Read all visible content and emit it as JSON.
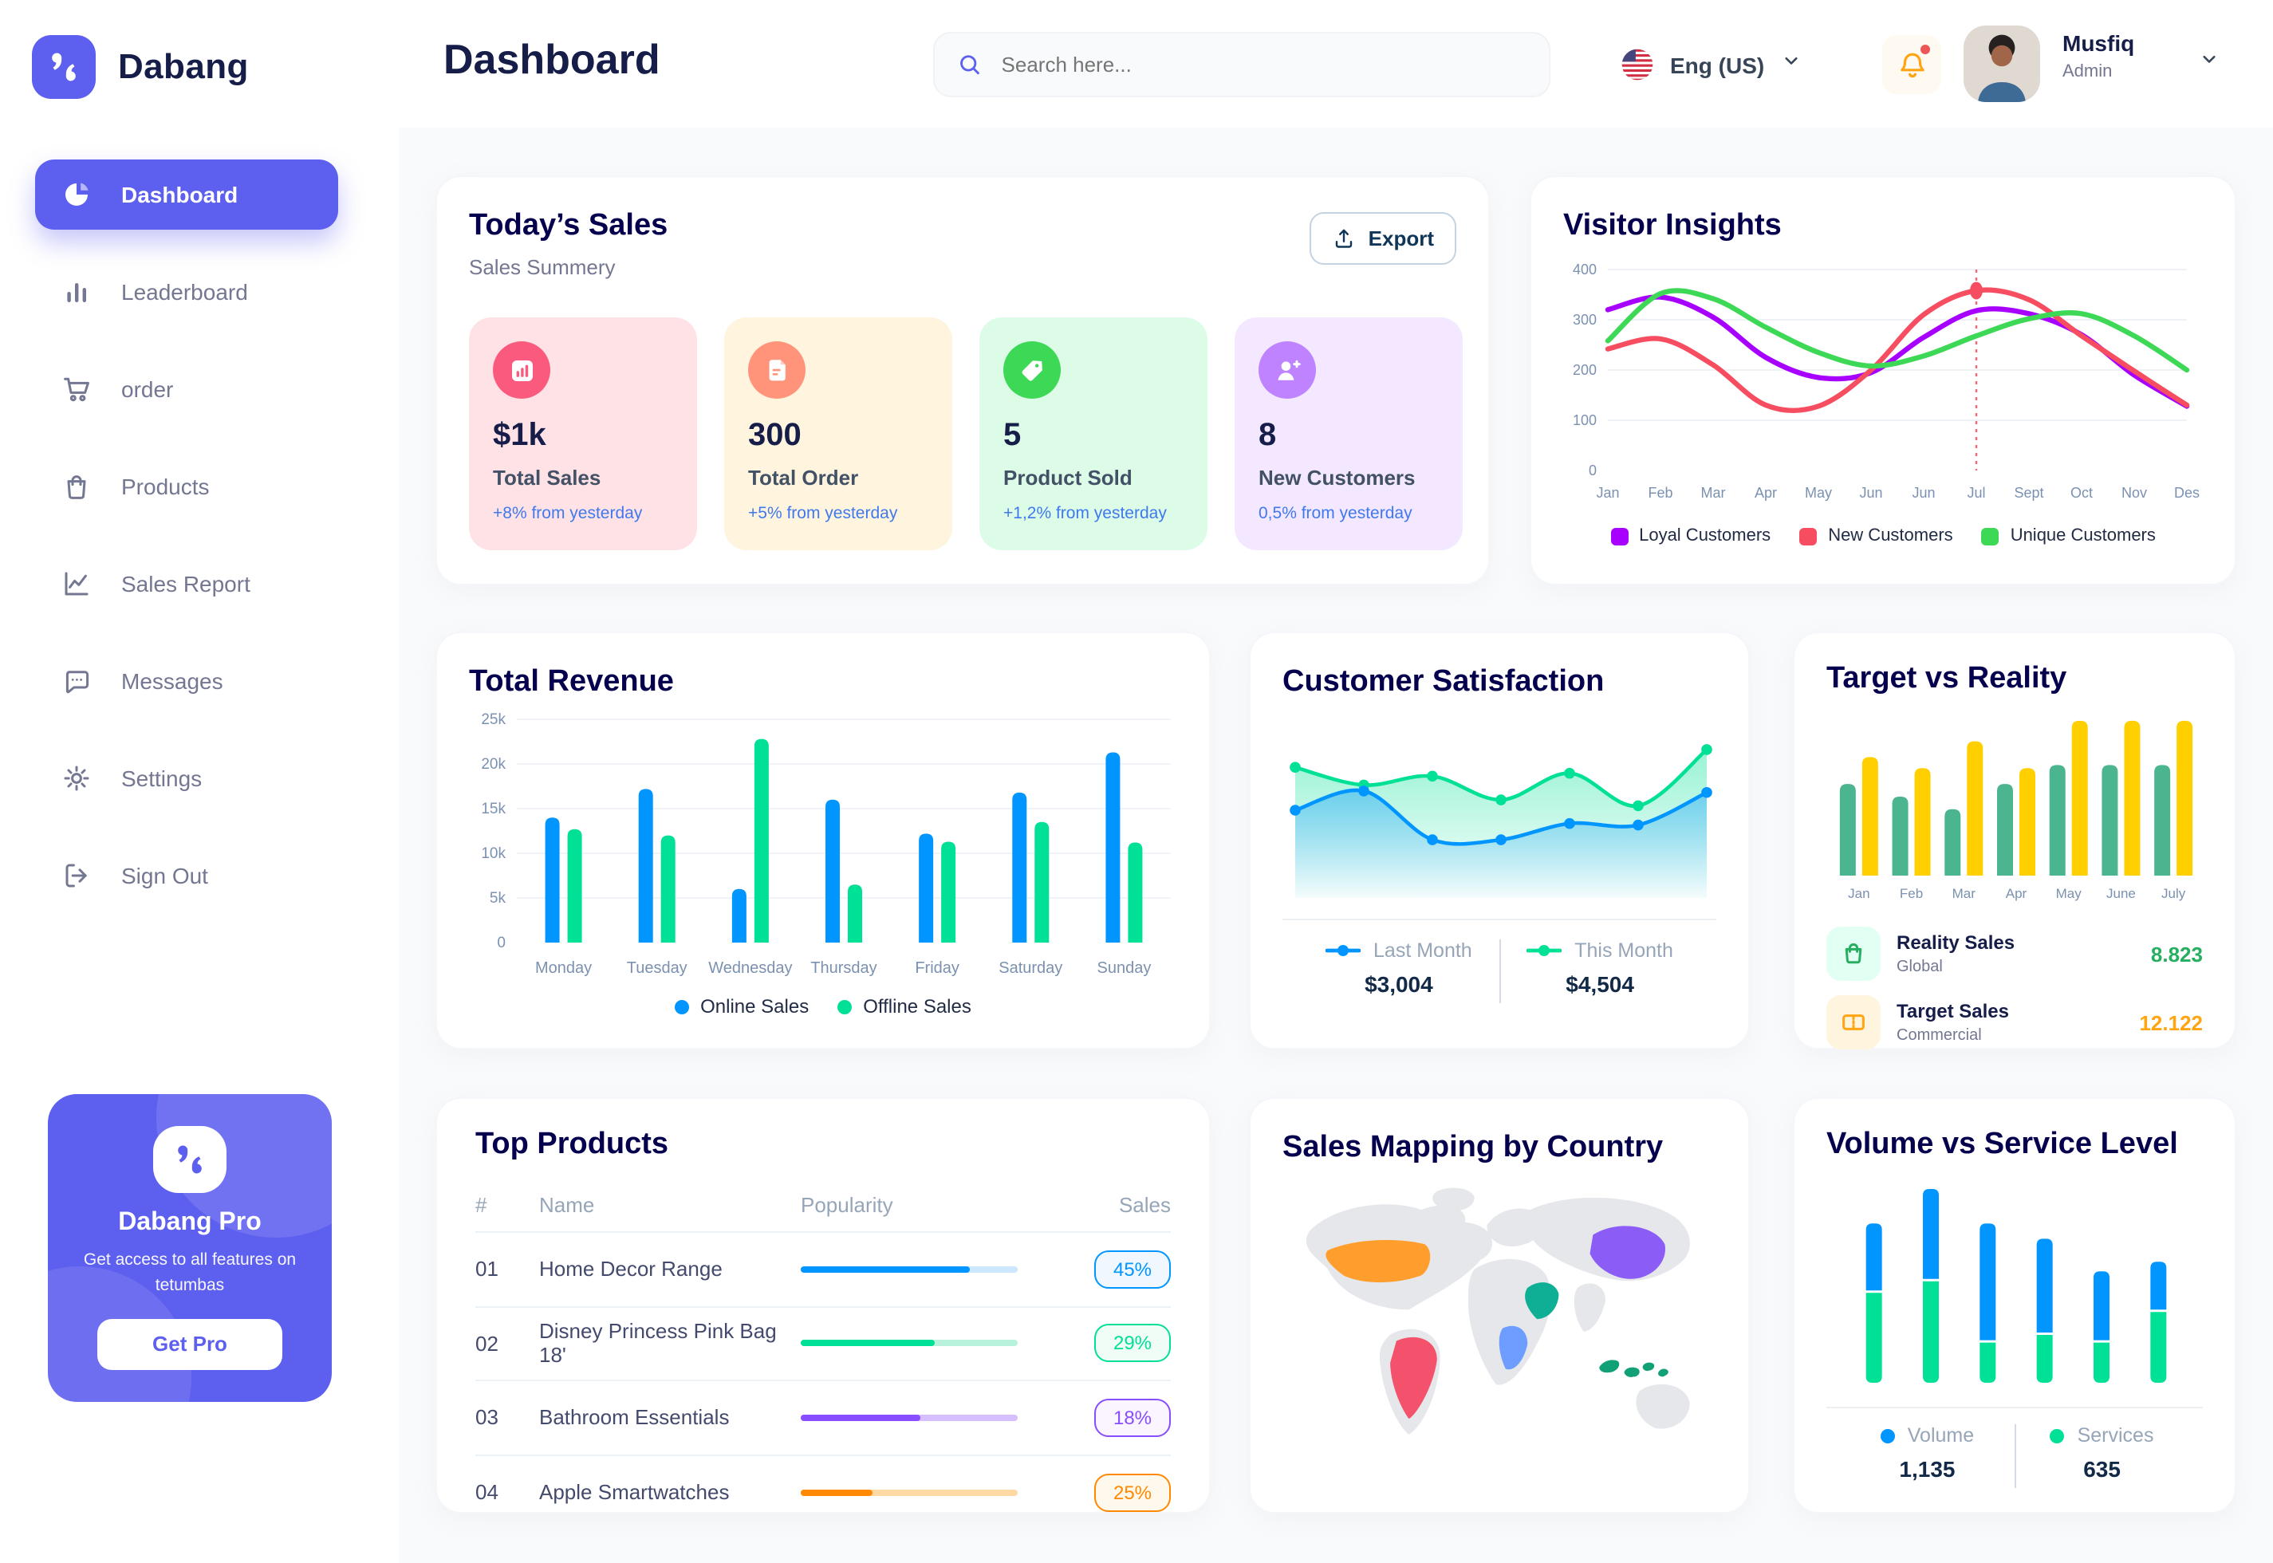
{
  "app": {
    "brand": "Dabang"
  },
  "header": {
    "title": "Dashboard",
    "search_placeholder": "Search here...",
    "language": "Eng (US)",
    "user_name": "Musfiq",
    "user_role": "Admin"
  },
  "sidebar": {
    "items": [
      {
        "label": "Dashboard",
        "icon": "pie-chart",
        "active": true
      },
      {
        "label": "Leaderboard",
        "icon": "bar-chart",
        "active": false
      },
      {
        "label": "order",
        "icon": "cart",
        "active": false
      },
      {
        "label": "Products",
        "icon": "bag",
        "active": false
      },
      {
        "label": "Sales Report",
        "icon": "line-chart",
        "active": false
      },
      {
        "label": "Messages",
        "icon": "message",
        "active": false
      },
      {
        "label": "Settings",
        "icon": "gear",
        "active": false
      },
      {
        "label": "Sign Out",
        "icon": "sign-out",
        "active": false
      }
    ],
    "promo": {
      "title": "Dabang Pro",
      "subtitle": "Get access to all features on tetumbas",
      "cta": "Get Pro"
    }
  },
  "today_sales": {
    "title": "Today’s Sales",
    "subtitle": "Sales Summery",
    "export_label": "Export",
    "cards": [
      {
        "value": "$1k",
        "label": "Total Sales",
        "delta": "+8% from yesterday",
        "bg": "#FFE2E5",
        "icon_bg": "#FA5A7D",
        "icon": "stat-chart"
      },
      {
        "value": "300",
        "label": "Total Order",
        "delta": "+5% from yesterday",
        "bg": "#FFF4DE",
        "icon_bg": "#FF947A",
        "icon": "stat-file"
      },
      {
        "value": "5",
        "label": "Product Sold",
        "delta": "+1,2% from yesterday",
        "bg": "#DCFCE7",
        "icon_bg": "#3CD856",
        "icon": "stat-tag"
      },
      {
        "value": "8",
        "label": "New Customers",
        "delta": "0,5% from yesterday",
        "bg": "#F3E8FF",
        "icon_bg": "#BF83FF",
        "icon": "stat-user"
      }
    ]
  },
  "top_products": {
    "title": "Top Products",
    "headers": [
      "#",
      "Name",
      "Popularity",
      "Sales"
    ],
    "rows": [
      {
        "num": "01",
        "name": "Home Decor Range",
        "popularity": 78,
        "sales": "45%",
        "color": "#0095FF",
        "track": "#CDE7FF",
        "badge_bg": "#F0F7FF"
      },
      {
        "num": "02",
        "name": "Disney Princess Pink Bag 18'",
        "popularity": 62,
        "sales": "29%",
        "color": "#00E096",
        "track": "#B9F2DC",
        "badge_bg": "#F0FDF6"
      },
      {
        "num": "03",
        "name": "Bathroom Essentials",
        "popularity": 55,
        "sales": "18%",
        "color": "#884DFF",
        "track": "#D6BFFF",
        "badge_bg": "#FAF5FF"
      },
      {
        "num": "04",
        "name": "Apple Smartwatches",
        "popularity": 33,
        "sales": "25%",
        "color": "#FF8900",
        "track": "#FFD9A3",
        "badge_bg": "#FFF8EC"
      }
    ]
  },
  "sales_map": {
    "title": "Sales Mapping by Country",
    "countries": [
      {
        "name": "United States",
        "color": "#FF9E2C"
      },
      {
        "name": "Brazil",
        "color": "#F4516C"
      },
      {
        "name": "DR Congo",
        "color": "#6D9EFF"
      },
      {
        "name": "Saudi Arabia",
        "color": "#0FAF96"
      },
      {
        "name": "China",
        "color": "#8C5CF6"
      },
      {
        "name": "Indonesia",
        "color": "#12A176"
      }
    ]
  },
  "chart_data": [
    {
      "id": "visitor_insights",
      "type": "line",
      "title": "Visitor Insights",
      "x": [
        "Jan",
        "Feb",
        "Mar",
        "Apr",
        "May",
        "Jun",
        "Jun",
        "Jul",
        "Sept",
        "Oct",
        "Nov",
        "Des"
      ],
      "ylim": [
        0,
        400
      ],
      "yticks": [
        0,
        100,
        200,
        300,
        400
      ],
      "grid": true,
      "legend_position": "bottom",
      "series": [
        {
          "name": "Loyal Customers",
          "color": "#A700FF",
          "values": [
            320,
            345,
            305,
            225,
            185,
            195,
            265,
            318,
            312,
            270,
            190,
            128
          ]
        },
        {
          "name": "New Customers",
          "color": "#F64E60",
          "values": [
            242,
            262,
            210,
            130,
            128,
            200,
            310,
            358,
            340,
            268,
            198,
            130
          ]
        },
        {
          "name": "Unique Customers",
          "color": "#3CD856",
          "values": [
            258,
            352,
            342,
            285,
            235,
            208,
            228,
            268,
            302,
            312,
            268,
            200
          ]
        }
      ],
      "annotation": {
        "x_index": 7,
        "marker_series": "New Customers",
        "marker_value": 358
      }
    },
    {
      "id": "total_revenue",
      "type": "bar",
      "title": "Total Revenue",
      "categories": [
        "Monday",
        "Tuesday",
        "Wednesday",
        "Thursday",
        "Friday",
        "Saturday",
        "Sunday"
      ],
      "ylim": [
        0,
        25000
      ],
      "yticks": [
        "0",
        "5k",
        "10k",
        "15k",
        "20k",
        "25k"
      ],
      "grid": true,
      "legend_position": "bottom",
      "series": [
        {
          "name": "Online Sales",
          "color": "#0095FF",
          "values": [
            14000,
            17200,
            6000,
            16000,
            12200,
            16800,
            21300
          ]
        },
        {
          "name": "Offline Sales",
          "color": "#00E096",
          "values": [
            12700,
            12000,
            22800,
            6500,
            11300,
            13500,
            11200
          ]
        }
      ]
    },
    {
      "id": "customer_satisfaction",
      "type": "area",
      "title": "Customer Satisfaction",
      "ylim": [
        0,
        110
      ],
      "grid": false,
      "legend_position": "bottom",
      "series": [
        {
          "name": "Last Month",
          "total": "$3,004",
          "color": "#0095FF",
          "values": [
            55,
            68,
            35,
            35,
            46,
            45,
            67
          ]
        },
        {
          "name": "This Month",
          "total": "$4,504",
          "color": "#00E096",
          "values": [
            84,
            72,
            78,
            62,
            80,
            58,
            96
          ]
        }
      ]
    },
    {
      "id": "target_vs_reality",
      "type": "bar",
      "title": "Target vs Reality",
      "categories": [
        "Jan",
        "Feb",
        "Mar",
        "Apr",
        "May",
        "June",
        "July"
      ],
      "ylim": [
        0,
        105
      ],
      "grid": false,
      "legend_position": "bottom",
      "series": [
        {
          "name": "Reality Sales",
          "subtitle": "Global",
          "color": "#4AB58E",
          "value_label": "8.823",
          "value_color": "#27AE60",
          "tile_bg": "#E2FFF3",
          "icon": "bag-small",
          "values": [
            58,
            50,
            42,
            58,
            70,
            70,
            70
          ]
        },
        {
          "name": "Target Sales",
          "subtitle": "Commercial",
          "color": "#FFCF00",
          "value_label": "12.122",
          "value_color": "#FFA412",
          "tile_bg": "#FFF4DE",
          "icon": "ticket-small",
          "values": [
            75,
            68,
            85,
            68,
            98,
            98,
            98
          ]
        }
      ]
    },
    {
      "id": "volume_vs_service",
      "type": "stacked-bar",
      "title": "Volume vs Service Level",
      "ylim": [
        0,
        105
      ],
      "grid": false,
      "legend_position": "bottom",
      "series": [
        {
          "name": "Volume",
          "total": "1,135",
          "color": "#0095FF",
          "values": [
            35,
            47,
            61,
            49,
            36,
            25
          ]
        },
        {
          "name": "Services",
          "total": "635",
          "color": "#00E096",
          "values": [
            47,
            53,
            21,
            25,
            21,
            37
          ]
        }
      ]
    }
  ]
}
